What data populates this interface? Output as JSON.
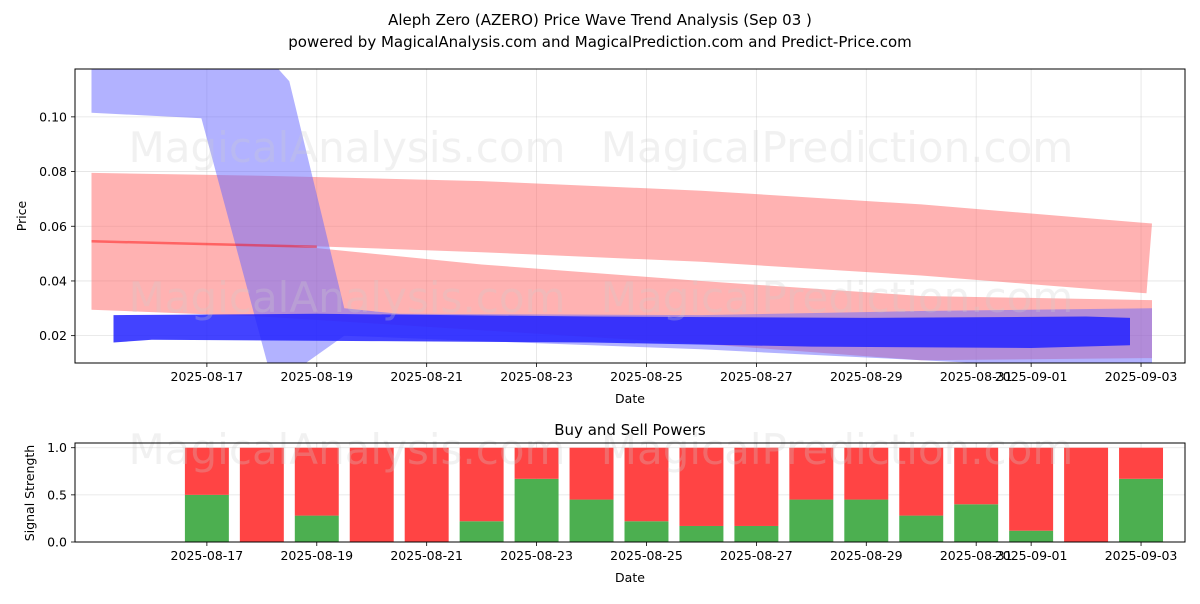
{
  "title": "Aleph Zero (AZERO) Price Wave Trend Analysis (Sep 03 )",
  "subtitle": "powered by MagicalAnalysis.com and MagicalPrediction.com and Predict-Price.com",
  "watermarks": [
    "MagicalAnalysis.com",
    "MagicalPrediction.com"
  ],
  "colors": {
    "red_band": "#ff6666",
    "red_line": "#ff0000",
    "blue_band": "#6666ff",
    "blue_dark": "#2222ff",
    "buy": "#4caf50",
    "sell": "#ff4444",
    "grid": "#b0b0b0"
  },
  "chart_data": [
    {
      "type": "area",
      "name": "price-wave-chart",
      "xlabel": "Date",
      "ylabel": "Price",
      "xlim": [
        -1.4,
        18.8
      ],
      "ylim": [
        0.01,
        0.1175
      ],
      "x_ticks": [
        {
          "x": 1,
          "label": "2025-08-17"
        },
        {
          "x": 3,
          "label": "2025-08-19"
        },
        {
          "x": 5,
          "label": "2025-08-21"
        },
        {
          "x": 7,
          "label": "2025-08-23"
        },
        {
          "x": 9,
          "label": "2025-08-25"
        },
        {
          "x": 11,
          "label": "2025-08-27"
        },
        {
          "x": 13,
          "label": "2025-08-29"
        },
        {
          "x": 15,
          "label": "2025-08-31"
        },
        {
          "x": 16,
          "label": "2025-09-01"
        },
        {
          "x": 18,
          "label": "2025-09-03"
        }
      ],
      "y_ticks": [
        {
          "y": 0.02,
          "label": "0.02"
        },
        {
          "y": 0.04,
          "label": "0.04"
        },
        {
          "y": 0.06,
          "label": "0.06"
        },
        {
          "y": 0.08,
          "label": "0.08"
        },
        {
          "y": 0.1,
          "label": "0.10"
        }
      ],
      "bands": [
        {
          "name": "red-upper-band",
          "color": "red",
          "opacity": 0.5,
          "upper": [
            [
              -1.1,
              0.0795
            ],
            [
              2.0,
              0.0785
            ],
            [
              6.0,
              0.0765
            ],
            [
              10.0,
              0.073
            ],
            [
              14.0,
              0.068
            ],
            [
              18.2,
              0.061
            ]
          ],
          "lower": [
            [
              18.1,
              0.0355
            ],
            [
              14.0,
              0.042
            ],
            [
              10.0,
              0.047
            ],
            [
              6.0,
              0.0505
            ],
            [
              2.5,
              0.053
            ],
            [
              -1.1,
              0.0545
            ]
          ]
        },
        {
          "name": "red-lower-band",
          "color": "red",
          "opacity": 0.5,
          "upper": [
            [
              -1.1,
              0.0545
            ],
            [
              2.5,
              0.053
            ],
            [
              6.0,
              0.046
            ],
            [
              10.0,
              0.04
            ],
            [
              14.0,
              0.0345
            ],
            [
              18.2,
              0.033
            ]
          ],
          "lower": [
            [
              18.2,
              0.0118
            ],
            [
              14.0,
              0.011
            ],
            [
              10.0,
              0.017
            ],
            [
              6.0,
              0.022
            ],
            [
              2.0,
              0.027
            ],
            [
              -1.1,
              0.0295
            ]
          ]
        },
        {
          "name": "blue-upper-band",
          "color": "blue",
          "opacity": 0.5,
          "upper": [
            [
              -1.1,
              0.1175
            ],
            [
              2.3,
              0.1175
            ],
            [
              2.5,
              0.113
            ],
            [
              3.5,
              0.03
            ],
            [
              4.5,
              0.028
            ],
            [
              10.0,
              0.0275
            ],
            [
              14.0,
              0.029
            ],
            [
              18.2,
              0.03
            ]
          ],
          "lower": [
            [
              18.2,
              0.01
            ],
            [
              15.0,
              0.01
            ],
            [
              13.0,
              0.012
            ],
            [
              10.0,
              0.015
            ],
            [
              6.0,
              0.018
            ],
            [
              3.5,
              0.02
            ],
            [
              2.8,
              0.01
            ],
            [
              2.1,
              0.01
            ],
            [
              0.9,
              0.0995
            ],
            [
              -1.1,
              0.1015
            ]
          ]
        },
        {
          "name": "blue-lower-band",
          "color": "blue",
          "opacity": 0.85,
          "upper": [
            [
              -0.7,
              0.0275
            ],
            [
              3.0,
              0.028
            ],
            [
              8.0,
              0.027
            ],
            [
              13.0,
              0.0265
            ],
            [
              17.0,
              0.027
            ],
            [
              17.8,
              0.0265
            ]
          ],
          "lower": [
            [
              17.8,
              0.0165
            ],
            [
              16.0,
              0.0155
            ],
            [
              12.0,
              0.016
            ],
            [
              8.0,
              0.0175
            ],
            [
              4.0,
              0.018
            ],
            [
              0.0,
              0.0185
            ],
            [
              -0.7,
              0.0175
            ]
          ]
        }
      ],
      "lines": [
        {
          "name": "red-trend-line",
          "color": "red",
          "points": [
            [
              -1.1,
              0.0545
            ],
            [
              3.0,
              0.0525
            ]
          ]
        }
      ]
    },
    {
      "type": "bar",
      "name": "buy-sell-powers-chart",
      "title": "Buy and Sell Powers",
      "xlabel": "Date",
      "ylabel": "Signal Strength",
      "xlim": [
        -1.4,
        18.8
      ],
      "ylim": [
        0,
        1.05
      ],
      "x_ticks": [
        {
          "x": 1,
          "label": "2025-08-17"
        },
        {
          "x": 3,
          "label": "2025-08-19"
        },
        {
          "x": 5,
          "label": "2025-08-21"
        },
        {
          "x": 7,
          "label": "2025-08-23"
        },
        {
          "x": 9,
          "label": "2025-08-25"
        },
        {
          "x": 11,
          "label": "2025-08-27"
        },
        {
          "x": 13,
          "label": "2025-08-29"
        },
        {
          "x": 15,
          "label": "2025-08-31"
        },
        {
          "x": 16,
          "label": "2025-09-01"
        },
        {
          "x": 18,
          "label": "2025-09-03"
        }
      ],
      "y_ticks": [
        {
          "y": 0,
          "label": "0.0"
        },
        {
          "y": 0.5,
          "label": "0.5"
        },
        {
          "y": 1.0,
          "label": "1.0"
        }
      ],
      "bar_width": 0.8,
      "x": [
        1,
        2,
        3,
        4,
        5,
        6,
        7,
        8,
        9,
        10,
        11,
        12,
        13,
        14,
        15,
        16,
        17,
        18
      ],
      "series": [
        {
          "name": "Buy",
          "values": [
            0.5,
            0.0,
            0.28,
            0.0,
            0.0,
            0.22,
            0.67,
            0.45,
            0.22,
            0.17,
            0.17,
            0.45,
            0.45,
            0.28,
            0.4,
            0.12,
            0.0,
            0.67
          ]
        },
        {
          "name": "Sell",
          "values": [
            0.5,
            1.0,
            0.72,
            1.0,
            1.0,
            0.78,
            0.33,
            0.55,
            0.78,
            0.83,
            0.83,
            0.55,
            0.55,
            0.72,
            0.6,
            0.88,
            1.0,
            0.33
          ]
        }
      ]
    }
  ]
}
